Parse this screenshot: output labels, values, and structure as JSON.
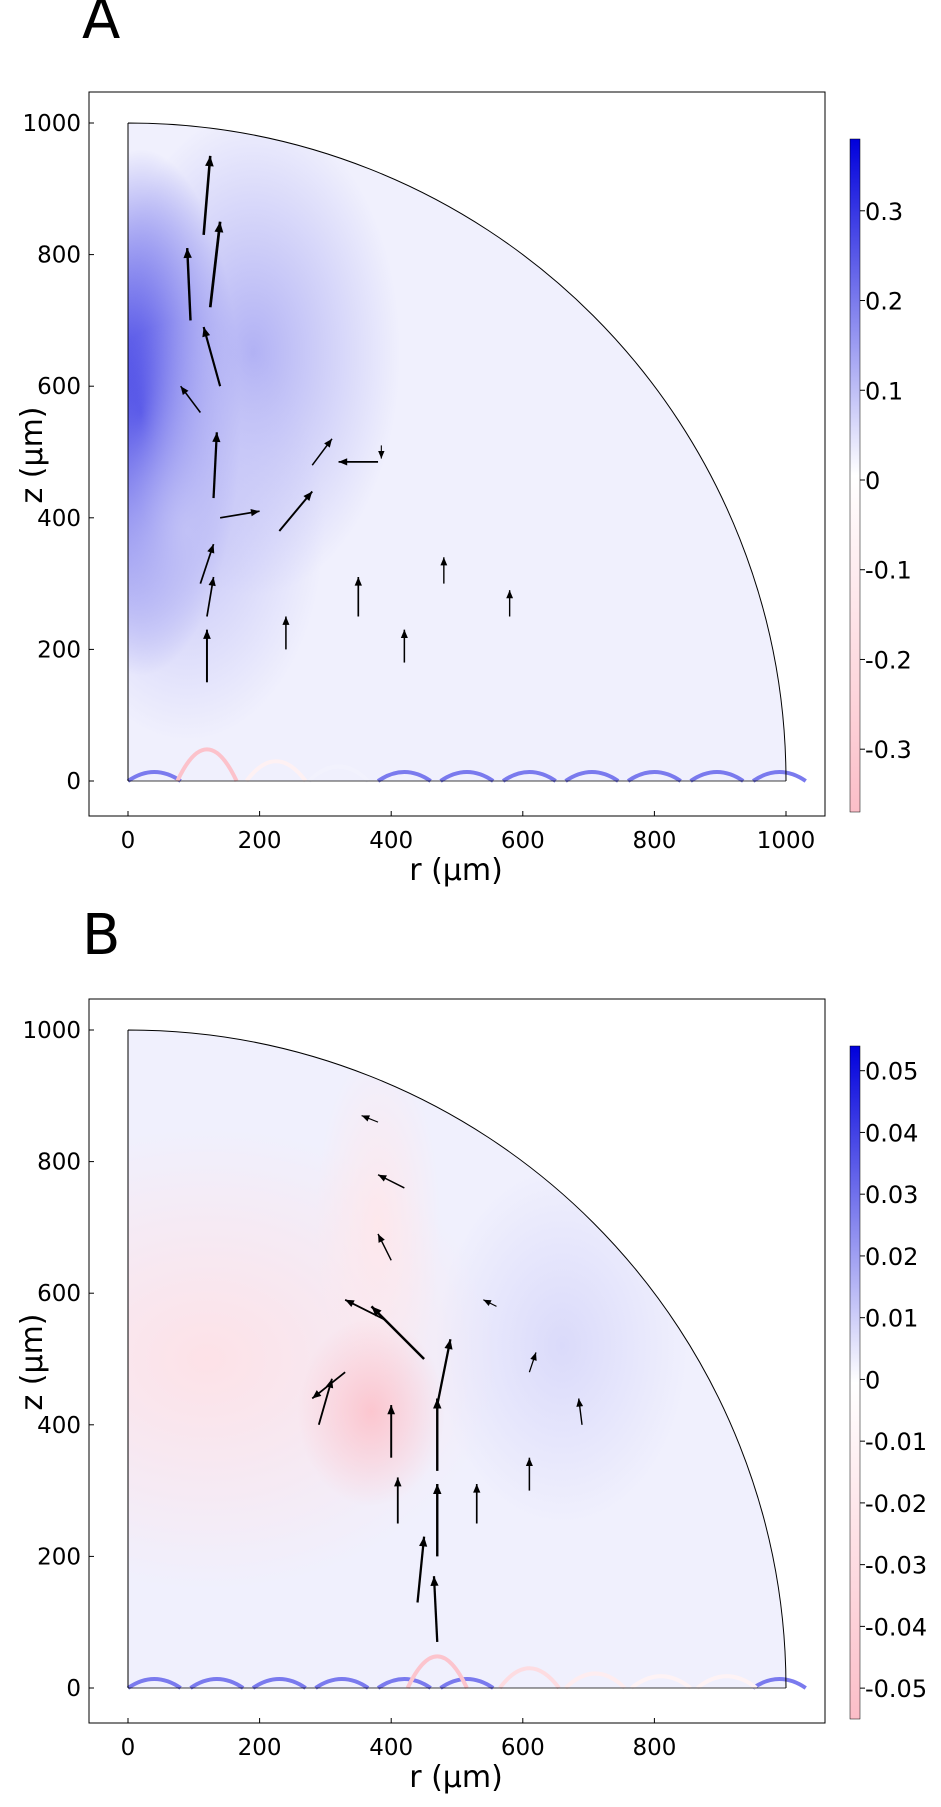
{
  "chart_data": [
    {
      "type": "heatmap",
      "panel_label": "A",
      "xlabel": "r (µm)",
      "ylabel": "z (µm)",
      "xlim": [
        -60,
        1060
      ],
      "ylim": [
        -50,
        1050
      ],
      "x_ticks": [
        0,
        200,
        400,
        600,
        800,
        1000
      ],
      "y_ticks": [
        0,
        200,
        400,
        600,
        800,
        1000
      ],
      "colorbar": {
        "range": [
          -0.37,
          0.38
        ],
        "ticks": [
          0.3,
          0.2,
          0.1,
          0,
          -0.1,
          -0.2,
          -0.3
        ],
        "tick_labels": [
          "0.3",
          "0.2",
          "0.1",
          "0",
          "-0.1",
          "-0.2",
          "-0.3"
        ]
      },
      "domain": "quarter circle, radius 1000",
      "field_blobs": [
        {
          "r": 20,
          "z": 560,
          "sr": 95,
          "sz": 250,
          "value": 0.38
        },
        {
          "r": 190,
          "z": 650,
          "sr": 140,
          "sz": 230,
          "value": 0.12
        },
        {
          "r": 90,
          "z": 380,
          "sr": 130,
          "sz": 200,
          "value": 0.09
        }
      ],
      "boundary_bumps": [
        {
          "r": 120,
          "height": 48,
          "value": -0.35
        },
        {
          "r": 225,
          "height": 30,
          "value": -0.08
        },
        {
          "r": 320,
          "height": 22,
          "value": 0.02
        }
      ],
      "vectors": [
        {
          "r": 115,
          "z": 830,
          "dr": 10,
          "dz": 120
        },
        {
          "r": 125,
          "z": 720,
          "dr": 15,
          "dz": 130
        },
        {
          "r": 95,
          "z": 700,
          "dr": -5,
          "dz": 110
        },
        {
          "r": 140,
          "z": 600,
          "dr": -25,
          "dz": 90
        },
        {
          "r": 110,
          "z": 560,
          "dr": -30,
          "dz": 40
        },
        {
          "r": 130,
          "z": 430,
          "dr": 5,
          "dz": 100
        },
        {
          "r": 110,
          "z": 300,
          "dr": 20,
          "dz": 60
        },
        {
          "r": 120,
          "z": 250,
          "dr": 10,
          "dz": 60
        },
        {
          "r": 120,
          "z": 150,
          "dr": 0,
          "dz": 80
        },
        {
          "r": 140,
          "z": 400,
          "dr": 60,
          "dz": 10
        },
        {
          "r": 230,
          "z": 380,
          "dr": 50,
          "dz": 60
        },
        {
          "r": 280,
          "z": 480,
          "dr": 30,
          "dz": 40
        },
        {
          "r": 380,
          "z": 485,
          "dr": -60,
          "dz": 0
        },
        {
          "r": 385,
          "z": 510,
          "dr": 0,
          "dz": -20
        },
        {
          "r": 240,
          "z": 200,
          "dr": 0,
          "dz": 50
        },
        {
          "r": 350,
          "z": 250,
          "dr": 0,
          "dz": 60
        },
        {
          "r": 420,
          "z": 180,
          "dr": 0,
          "dz": 50
        },
        {
          "r": 480,
          "z": 300,
          "dr": 0,
          "dz": 40
        },
        {
          "r": 580,
          "z": 250,
          "dr": 0,
          "dz": 40
        }
      ]
    },
    {
      "type": "heatmap",
      "panel_label": "B",
      "xlabel": "r (µm)",
      "ylabel": "z (µm)",
      "xlim": [
        -60,
        1060
      ],
      "ylim": [
        -50,
        1050
      ],
      "x_ticks": [
        0,
        200,
        400,
        600,
        800
      ],
      "y_ticks": [
        0,
        200,
        400,
        600,
        800,
        1000
      ],
      "colorbar": {
        "range": [
          -0.055,
          0.054
        ],
        "ticks": [
          0.05,
          0.04,
          0.03,
          0.02,
          0.01,
          0,
          -0.01,
          -0.02,
          -0.03,
          -0.04,
          -0.05
        ],
        "tick_labels": [
          "0.05",
          "0.04",
          "0.03",
          "0.02",
          "0.01",
          "0",
          "-0.01",
          "-0.02",
          "-0.03",
          "-0.04",
          "-0.05"
        ]
      },
      "domain": "quarter circle, radius 1000",
      "field_blobs": [
        {
          "r": 120,
          "z": 500,
          "sr": 280,
          "sz": 220,
          "value": -0.025
        },
        {
          "r": 380,
          "z": 700,
          "sr": 60,
          "sz": 170,
          "value": -0.02
        },
        {
          "r": 370,
          "z": 420,
          "sr": 70,
          "sz": 90,
          "value": -0.05
        },
        {
          "r": 660,
          "z": 520,
          "sr": 120,
          "sz": 170,
          "value": 0.008
        }
      ],
      "boundary_bumps": [
        {
          "r": 470,
          "height": 48,
          "value": -0.05
        },
        {
          "r": 610,
          "height": 30,
          "value": -0.03
        },
        {
          "r": 710,
          "height": 22,
          "value": -0.015
        },
        {
          "r": 810,
          "height": 18,
          "value": -0.01
        },
        {
          "r": 910,
          "height": 18,
          "value": -0.01
        }
      ],
      "vectors": [
        {
          "r": 450,
          "z": 500,
          "dr": -80,
          "dz": 80
        },
        {
          "r": 470,
          "z": 430,
          "dr": 20,
          "dz": 100
        },
        {
          "r": 470,
          "z": 330,
          "dr": 0,
          "dz": 110
        },
        {
          "r": 470,
          "z": 200,
          "dr": 0,
          "dz": 110
        },
        {
          "r": 440,
          "z": 130,
          "dr": 10,
          "dz": 100
        },
        {
          "r": 470,
          "z": 70,
          "dr": -5,
          "dz": 100
        },
        {
          "r": 390,
          "z": 560,
          "dr": -60,
          "dz": 30
        },
        {
          "r": 330,
          "z": 480,
          "dr": -50,
          "dz": -40
        },
        {
          "r": 290,
          "z": 400,
          "dr": 20,
          "dz": 70
        },
        {
          "r": 400,
          "z": 350,
          "dr": 0,
          "dz": 80
        },
        {
          "r": 410,
          "z": 250,
          "dr": 0,
          "dz": 70
        },
        {
          "r": 420,
          "z": 760,
          "dr": -40,
          "dz": 20
        },
        {
          "r": 380,
          "z": 860,
          "dr": -25,
          "dz": 10
        },
        {
          "r": 400,
          "z": 650,
          "dr": -20,
          "dz": 40
        },
        {
          "r": 610,
          "z": 480,
          "dr": 10,
          "dz": 30
        },
        {
          "r": 610,
          "z": 300,
          "dr": 0,
          "dz": 50
        },
        {
          "r": 690,
          "z": 400,
          "dr": -5,
          "dz": 40
        },
        {
          "r": 530,
          "z": 250,
          "dr": 0,
          "dz": 60
        },
        {
          "r": 560,
          "z": 580,
          "dr": -20,
          "dz": 10
        }
      ]
    }
  ]
}
